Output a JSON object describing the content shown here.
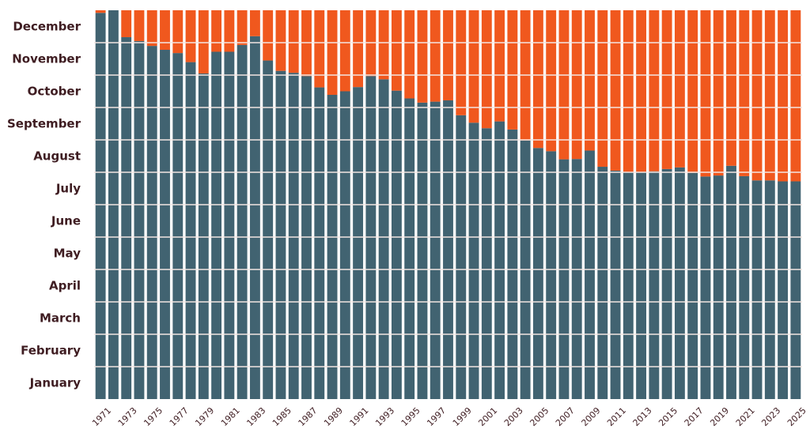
{
  "chart_data": {
    "type": "bar",
    "stacked": true,
    "title": "",
    "xlabel": "",
    "ylabel": "",
    "grid": true,
    "colors": {
      "bottom": "#416371",
      "top": "#f0581e",
      "divider": "#f2e6e2",
      "text": "#3f1d22"
    },
    "y_months": [
      "January",
      "February",
      "March",
      "April",
      "May",
      "June",
      "July",
      "August",
      "September",
      "October",
      "November",
      "December"
    ],
    "ylim": [
      0,
      12
    ],
    "categories": [
      "1971",
      "1972",
      "1973",
      "1974",
      "1975",
      "1976",
      "1977",
      "1978",
      "1979",
      "1980",
      "1981",
      "1982",
      "1983",
      "1984",
      "1985",
      "1986",
      "1987",
      "1988",
      "1989",
      "1990",
      "1991",
      "1992",
      "1993",
      "1994",
      "1995",
      "1996",
      "1997",
      "1998",
      "1999",
      "2000",
      "2001",
      "2002",
      "2003",
      "2004",
      "2005",
      "2006",
      "2007",
      "2008",
      "2009",
      "2010",
      "2011",
      "2012",
      "2013",
      "2014",
      "2015",
      "2016",
      "2017",
      "2018",
      "2019",
      "2020",
      "2021",
      "2022",
      "2023",
      "2024",
      "2025"
    ],
    "x_tick_labels": [
      "1971",
      "1973",
      "1975",
      "1977",
      "1979",
      "1981",
      "1983",
      "1985",
      "1987",
      "1989",
      "1991",
      "1993",
      "1995",
      "1997",
      "1999",
      "2001",
      "2003",
      "2005",
      "2007",
      "2009",
      "2011",
      "2013",
      "2015",
      "2017",
      "2019",
      "2021",
      "2023",
      "2025"
    ],
    "series": [
      {
        "values": [
          11.92,
          12.0,
          11.17,
          11.05,
          10.9,
          10.78,
          10.68,
          10.4,
          10.05,
          10.72,
          10.72,
          10.93,
          11.2,
          10.45,
          10.13,
          10.07,
          9.97,
          9.62,
          9.39,
          9.5,
          9.63,
          9.97,
          9.87,
          9.52,
          9.28,
          9.15,
          9.18,
          9.22,
          8.76,
          8.53,
          8.36,
          8.57,
          8.32,
          7.98,
          7.75,
          7.65,
          7.4,
          7.41,
          7.67,
          7.17,
          7.05,
          7.0,
          7.0,
          7.03,
          7.1,
          7.15,
          6.98,
          6.87,
          6.9,
          7.2,
          6.88,
          6.75,
          6.75,
          6.72,
          6.72
        ]
      },
      {
        "values": [
          0.08,
          0.0,
          0.83,
          0.95,
          1.1,
          1.22,
          1.32,
          1.6,
          1.95,
          1.28,
          1.28,
          1.07,
          0.8,
          1.55,
          1.87,
          1.93,
          2.03,
          2.38,
          2.61,
          2.5,
          2.37,
          2.03,
          2.13,
          2.48,
          2.72,
          2.85,
          2.82,
          2.78,
          3.24,
          3.47,
          3.64,
          3.43,
          3.68,
          4.02,
          4.25,
          4.35,
          4.6,
          4.59,
          4.33,
          4.83,
          4.95,
          5.0,
          5.0,
          4.97,
          4.9,
          4.85,
          5.02,
          5.13,
          5.1,
          4.8,
          5.12,
          5.25,
          5.25,
          5.28,
          5.28
        ]
      }
    ]
  }
}
